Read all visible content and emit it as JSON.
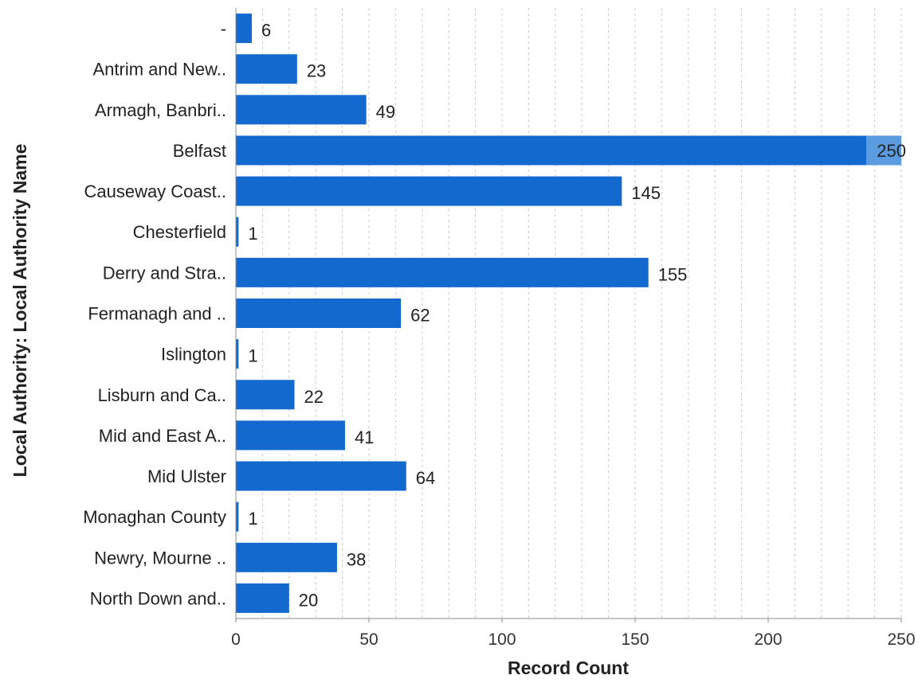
{
  "chart_data": {
    "type": "bar",
    "orientation": "horizontal",
    "categories": [
      "-",
      "Antrim and New..",
      "Armagh, Banbri..",
      "Belfast",
      "Causeway Coast..",
      "Chesterfield",
      "Derry and Stra..",
      "Fermanagh and ..",
      "Islington",
      "Lisburn and Ca..",
      "Mid and East A..",
      "Mid Ulster",
      "Monaghan County",
      "Newry, Mourne ..",
      "North Down and.."
    ],
    "values": [
      6,
      23,
      49,
      250,
      145,
      1,
      155,
      62,
      1,
      22,
      41,
      64,
      1,
      38,
      20
    ],
    "data_labels": [
      "6",
      "23",
      "49",
      "250",
      "145",
      "1",
      "155",
      "62",
      "1",
      "22",
      "41",
      "64",
      "1",
      "38",
      "20"
    ],
    "xlabel": "Record Count",
    "ylabel": "Local Authority: Local Authority Name",
    "xlim": [
      0,
      250
    ],
    "xticks": [
      0,
      50,
      100,
      150,
      200,
      250
    ],
    "xtick_labels": [
      "0",
      "50",
      "100",
      "150",
      "200",
      "250"
    ],
    "grid": "vertical dashed",
    "bar_color": "#1469cf",
    "highlight_label_bg": "#5b9be0"
  }
}
